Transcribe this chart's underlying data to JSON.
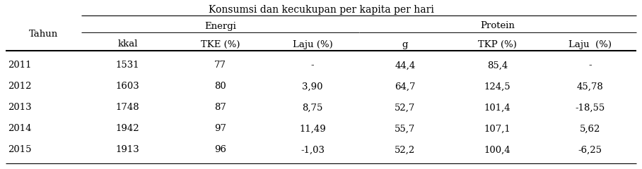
{
  "title": "Konsumsi dan kecukupan per kapita per hari",
  "rows": [
    [
      "2011",
      "1531",
      "77",
      "-",
      "44,4",
      "85,4",
      "-"
    ],
    [
      "2012",
      "1603",
      "80",
      "3,90",
      "64,7",
      "124,5",
      "45,78"
    ],
    [
      "2013",
      "1748",
      "87",
      "8,75",
      "52,7",
      "101,4",
      "-18,55"
    ],
    [
      "2014",
      "1942",
      "97",
      "11,49",
      "55,7",
      "107,1",
      "5,62"
    ],
    [
      "2015",
      "1913",
      "96",
      "-1,03",
      "52,2",
      "100,4",
      "-6,25"
    ]
  ],
  "bg_color": "#ffffff",
  "line_color": "#000000",
  "font_size": 9.5,
  "title_font_size": 10
}
